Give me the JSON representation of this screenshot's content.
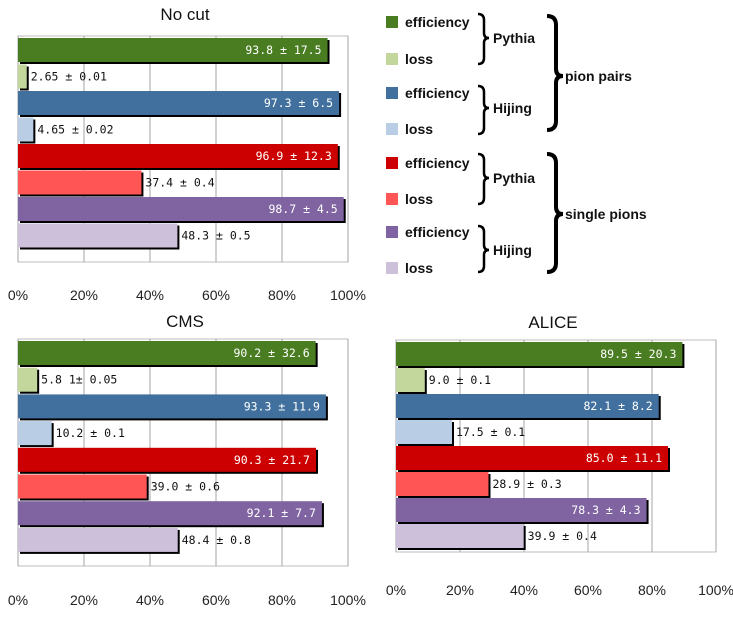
{
  "colors": {
    "dark_green": "#4a7d22",
    "light_green": "#c3d69b",
    "dark_blue": "#41709f",
    "light_blue": "#b9cde4",
    "dark_red": "#cc0000",
    "light_red": "#ff5555",
    "dark_purple": "#8064a2",
    "light_purple": "#ccc0da"
  },
  "legend": {
    "items": [
      {
        "label": "efficiency",
        "color": "#4a7d22"
      },
      {
        "label": "loss",
        "color": "#c3d69b"
      },
      {
        "label": "efficiency",
        "color": "#41709f"
      },
      {
        "label": "loss",
        "color": "#b9cde4"
      },
      {
        "label": "efficiency",
        "color": "#cc0000"
      },
      {
        "label": "loss",
        "color": "#ff5555"
      },
      {
        "label": "efficiency",
        "color": "#8064a2"
      },
      {
        "label": "loss",
        "color": "#ccc0da"
      }
    ],
    "generators": [
      "Pythia",
      "Hijing",
      "Pythia",
      "Hijing"
    ],
    "groups": [
      "pion pairs",
      "single pions"
    ]
  },
  "chart_data": [
    {
      "type": "bar",
      "orientation": "horizontal",
      "title": "No cut",
      "xlim": [
        0,
        100
      ],
      "ticks": [
        "0%",
        "20%",
        "40%",
        "60%",
        "80%",
        "100%"
      ],
      "grid": true,
      "bars": [
        {
          "value": 93.8,
          "label": "93.8 ± 17.5",
          "color": "#4a7d22"
        },
        {
          "value": 2.65,
          "label": "2.65 ± 0.01",
          "color": "#c3d69b"
        },
        {
          "value": 97.3,
          "label": "97.3 ± 6.5",
          "color": "#41709f"
        },
        {
          "value": 4.65,
          "label": "4.65 ± 0.02",
          "color": "#b9cde4"
        },
        {
          "value": 96.9,
          "label": "96.9 ± 12.3",
          "color": "#cc0000"
        },
        {
          "value": 37.4,
          "label": "37.4 ± 0.4",
          "color": "#ff5555"
        },
        {
          "value": 98.7,
          "label": "98.7 ± 4.5",
          "color": "#8064a2"
        },
        {
          "value": 48.3,
          "label": "48.3 ± 0.5",
          "color": "#ccc0da"
        }
      ]
    },
    {
      "type": "bar",
      "orientation": "horizontal",
      "title": "CMS",
      "xlim": [
        0,
        100
      ],
      "ticks": [
        "0%",
        "20%",
        "40%",
        "60%",
        "80%",
        "100%"
      ],
      "grid": true,
      "bars": [
        {
          "value": 90.2,
          "label": "90.2 ± 32.6",
          "color": "#4a7d22"
        },
        {
          "value": 5.81,
          "label": "5.8 1± 0.05",
          "color": "#c3d69b"
        },
        {
          "value": 93.3,
          "label": "93.3 ± 11.9",
          "color": "#41709f"
        },
        {
          "value": 10.2,
          "label": "10.2 ± 0.1",
          "color": "#b9cde4"
        },
        {
          "value": 90.3,
          "label": "90.3 ± 21.7",
          "color": "#cc0000"
        },
        {
          "value": 39.0,
          "label": "39.0 ± 0.6",
          "color": "#ff5555"
        },
        {
          "value": 92.1,
          "label": "92.1 ± 7.7",
          "color": "#8064a2"
        },
        {
          "value": 48.4,
          "label": "48.4 ± 0.8",
          "color": "#ccc0da"
        }
      ]
    },
    {
      "type": "bar",
      "orientation": "horizontal",
      "title": "ALICE",
      "xlim": [
        0,
        100
      ],
      "ticks": [
        "0%",
        "20%",
        "40%",
        "60%",
        "80%",
        "100%"
      ],
      "grid": true,
      "bars": [
        {
          "value": 89.5,
          "label": "89.5 ± 20.3",
          "color": "#4a7d22"
        },
        {
          "value": 9.0,
          "label": "9.0 ± 0.1",
          "color": "#c3d69b"
        },
        {
          "value": 82.1,
          "label": "82.1 ± 8.2",
          "color": "#41709f"
        },
        {
          "value": 17.5,
          "label": "17.5 ± 0.1",
          "color": "#b9cde4"
        },
        {
          "value": 85.0,
          "label": "85.0 ± 11.1",
          "color": "#cc0000"
        },
        {
          "value": 28.9,
          "label": "28.9 ± 0.3",
          "color": "#ff5555"
        },
        {
          "value": 78.3,
          "label": "78.3 ± 4.3",
          "color": "#8064a2"
        },
        {
          "value": 39.9,
          "label": "39.9 ± 0.4",
          "color": "#ccc0da"
        }
      ]
    }
  ]
}
